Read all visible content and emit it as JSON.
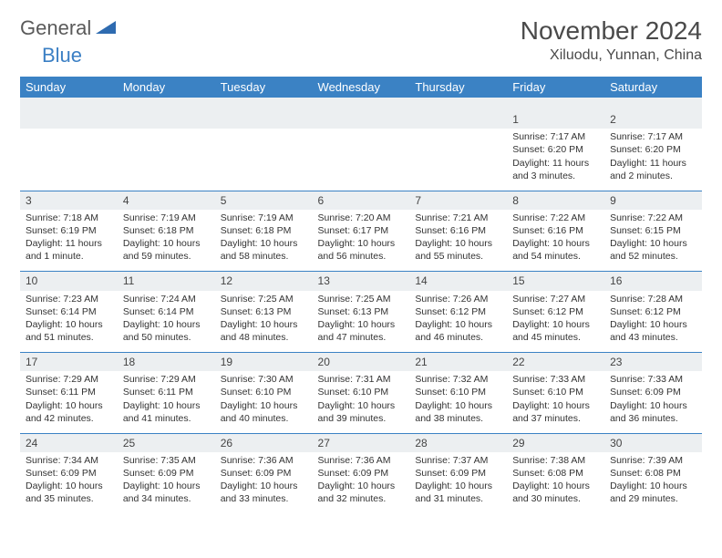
{
  "logo": {
    "general": "General",
    "blue": "Blue"
  },
  "title": "November 2024",
  "location": "Xiluodu, Yunnan, China",
  "colors": {
    "header_bg": "#3b82c4",
    "header_text": "#ffffff",
    "daynum_bg": "#eceff1",
    "border": "#3b82c4",
    "text": "#333333",
    "logo_gray": "#5a5a5a",
    "logo_blue": "#3b7fc4"
  },
  "fonts": {
    "title_size": 28,
    "location_size": 16,
    "day_header_size": 13,
    "cell_size": 10.5
  },
  "day_headers": [
    "Sunday",
    "Monday",
    "Tuesday",
    "Wednesday",
    "Thursday",
    "Friday",
    "Saturday"
  ],
  "weeks": [
    {
      "nums": [
        "",
        "",
        "",
        "",
        "",
        "1",
        "2"
      ],
      "cells": [
        "",
        "",
        "",
        "",
        "",
        "Sunrise: 7:17 AM\nSunset: 6:20 PM\nDaylight: 11 hours and 3 minutes.",
        "Sunrise: 7:17 AM\nSunset: 6:20 PM\nDaylight: 11 hours and 2 minutes."
      ]
    },
    {
      "nums": [
        "3",
        "4",
        "5",
        "6",
        "7",
        "8",
        "9"
      ],
      "cells": [
        "Sunrise: 7:18 AM\nSunset: 6:19 PM\nDaylight: 11 hours and 1 minute.",
        "Sunrise: 7:19 AM\nSunset: 6:18 PM\nDaylight: 10 hours and 59 minutes.",
        "Sunrise: 7:19 AM\nSunset: 6:18 PM\nDaylight: 10 hours and 58 minutes.",
        "Sunrise: 7:20 AM\nSunset: 6:17 PM\nDaylight: 10 hours and 56 minutes.",
        "Sunrise: 7:21 AM\nSunset: 6:16 PM\nDaylight: 10 hours and 55 minutes.",
        "Sunrise: 7:22 AM\nSunset: 6:16 PM\nDaylight: 10 hours and 54 minutes.",
        "Sunrise: 7:22 AM\nSunset: 6:15 PM\nDaylight: 10 hours and 52 minutes."
      ]
    },
    {
      "nums": [
        "10",
        "11",
        "12",
        "13",
        "14",
        "15",
        "16"
      ],
      "cells": [
        "Sunrise: 7:23 AM\nSunset: 6:14 PM\nDaylight: 10 hours and 51 minutes.",
        "Sunrise: 7:24 AM\nSunset: 6:14 PM\nDaylight: 10 hours and 50 minutes.",
        "Sunrise: 7:25 AM\nSunset: 6:13 PM\nDaylight: 10 hours and 48 minutes.",
        "Sunrise: 7:25 AM\nSunset: 6:13 PM\nDaylight: 10 hours and 47 minutes.",
        "Sunrise: 7:26 AM\nSunset: 6:12 PM\nDaylight: 10 hours and 46 minutes.",
        "Sunrise: 7:27 AM\nSunset: 6:12 PM\nDaylight: 10 hours and 45 minutes.",
        "Sunrise: 7:28 AM\nSunset: 6:12 PM\nDaylight: 10 hours and 43 minutes."
      ]
    },
    {
      "nums": [
        "17",
        "18",
        "19",
        "20",
        "21",
        "22",
        "23"
      ],
      "cells": [
        "Sunrise: 7:29 AM\nSunset: 6:11 PM\nDaylight: 10 hours and 42 minutes.",
        "Sunrise: 7:29 AM\nSunset: 6:11 PM\nDaylight: 10 hours and 41 minutes.",
        "Sunrise: 7:30 AM\nSunset: 6:10 PM\nDaylight: 10 hours and 40 minutes.",
        "Sunrise: 7:31 AM\nSunset: 6:10 PM\nDaylight: 10 hours and 39 minutes.",
        "Sunrise: 7:32 AM\nSunset: 6:10 PM\nDaylight: 10 hours and 38 minutes.",
        "Sunrise: 7:33 AM\nSunset: 6:10 PM\nDaylight: 10 hours and 37 minutes.",
        "Sunrise: 7:33 AM\nSunset: 6:09 PM\nDaylight: 10 hours and 36 minutes."
      ]
    },
    {
      "nums": [
        "24",
        "25",
        "26",
        "27",
        "28",
        "29",
        "30"
      ],
      "cells": [
        "Sunrise: 7:34 AM\nSunset: 6:09 PM\nDaylight: 10 hours and 35 minutes.",
        "Sunrise: 7:35 AM\nSunset: 6:09 PM\nDaylight: 10 hours and 34 minutes.",
        "Sunrise: 7:36 AM\nSunset: 6:09 PM\nDaylight: 10 hours and 33 minutes.",
        "Sunrise: 7:36 AM\nSunset: 6:09 PM\nDaylight: 10 hours and 32 minutes.",
        "Sunrise: 7:37 AM\nSunset: 6:09 PM\nDaylight: 10 hours and 31 minutes.",
        "Sunrise: 7:38 AM\nSunset: 6:08 PM\nDaylight: 10 hours and 30 minutes.",
        "Sunrise: 7:39 AM\nSunset: 6:08 PM\nDaylight: 10 hours and 29 minutes."
      ]
    }
  ]
}
